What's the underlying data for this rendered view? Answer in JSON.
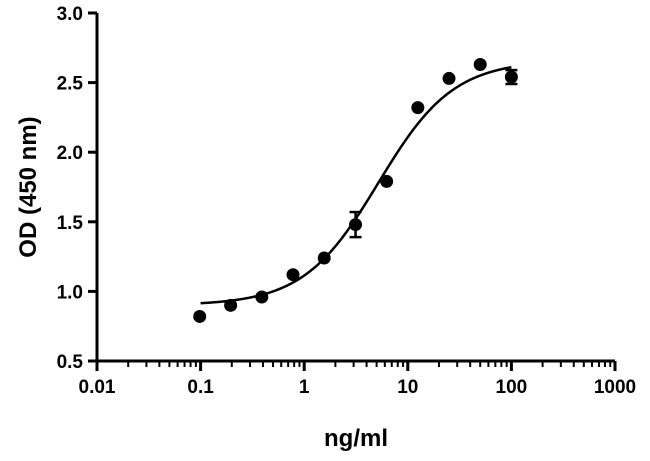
{
  "chart_data": {
    "type": "scatter",
    "xlabel": "ng/ml",
    "ylabel": "OD (450 nm)",
    "x_scale": "log",
    "xlim": [
      0.01,
      1000
    ],
    "ylim": [
      0.5,
      3.0
    ],
    "x_ticks": [
      0.01,
      0.1,
      1,
      10,
      100,
      1000
    ],
    "x_tick_labels": [
      "0.01",
      "0.1",
      "1",
      "10",
      "100",
      "1000"
    ],
    "y_ticks": [
      0.5,
      1.0,
      1.5,
      2.0,
      2.5,
      3.0
    ],
    "y_tick_labels": [
      "0.5",
      "1.0",
      "1.5",
      "2.0",
      "2.5",
      "3.0"
    ],
    "grid": false,
    "series": [
      {
        "marker": "circle",
        "color": "#000000",
        "points": [
          {
            "x": 0.098,
            "y": 0.82,
            "err": 0.0
          },
          {
            "x": 0.195,
            "y": 0.9,
            "err": 0.0
          },
          {
            "x": 0.39,
            "y": 0.96,
            "err": 0.0
          },
          {
            "x": 0.78,
            "y": 1.12,
            "err": 0.0
          },
          {
            "x": 1.56,
            "y": 1.24,
            "err": 0.0
          },
          {
            "x": 3.13,
            "y": 1.48,
            "err": 0.09
          },
          {
            "x": 6.25,
            "y": 1.79,
            "err": 0.0
          },
          {
            "x": 12.5,
            "y": 2.32,
            "err": 0.0
          },
          {
            "x": 25,
            "y": 2.53,
            "err": 0.0
          },
          {
            "x": 50,
            "y": 2.63,
            "err": 0.0
          },
          {
            "x": 100,
            "y": 2.54,
            "err": 0.05
          }
        ]
      }
    ],
    "fit": {
      "type": "4PL",
      "bottom": 0.9,
      "top": 2.66,
      "ec50": 5.2,
      "hill": 1.2,
      "x_range": [
        0.1,
        100
      ]
    }
  }
}
